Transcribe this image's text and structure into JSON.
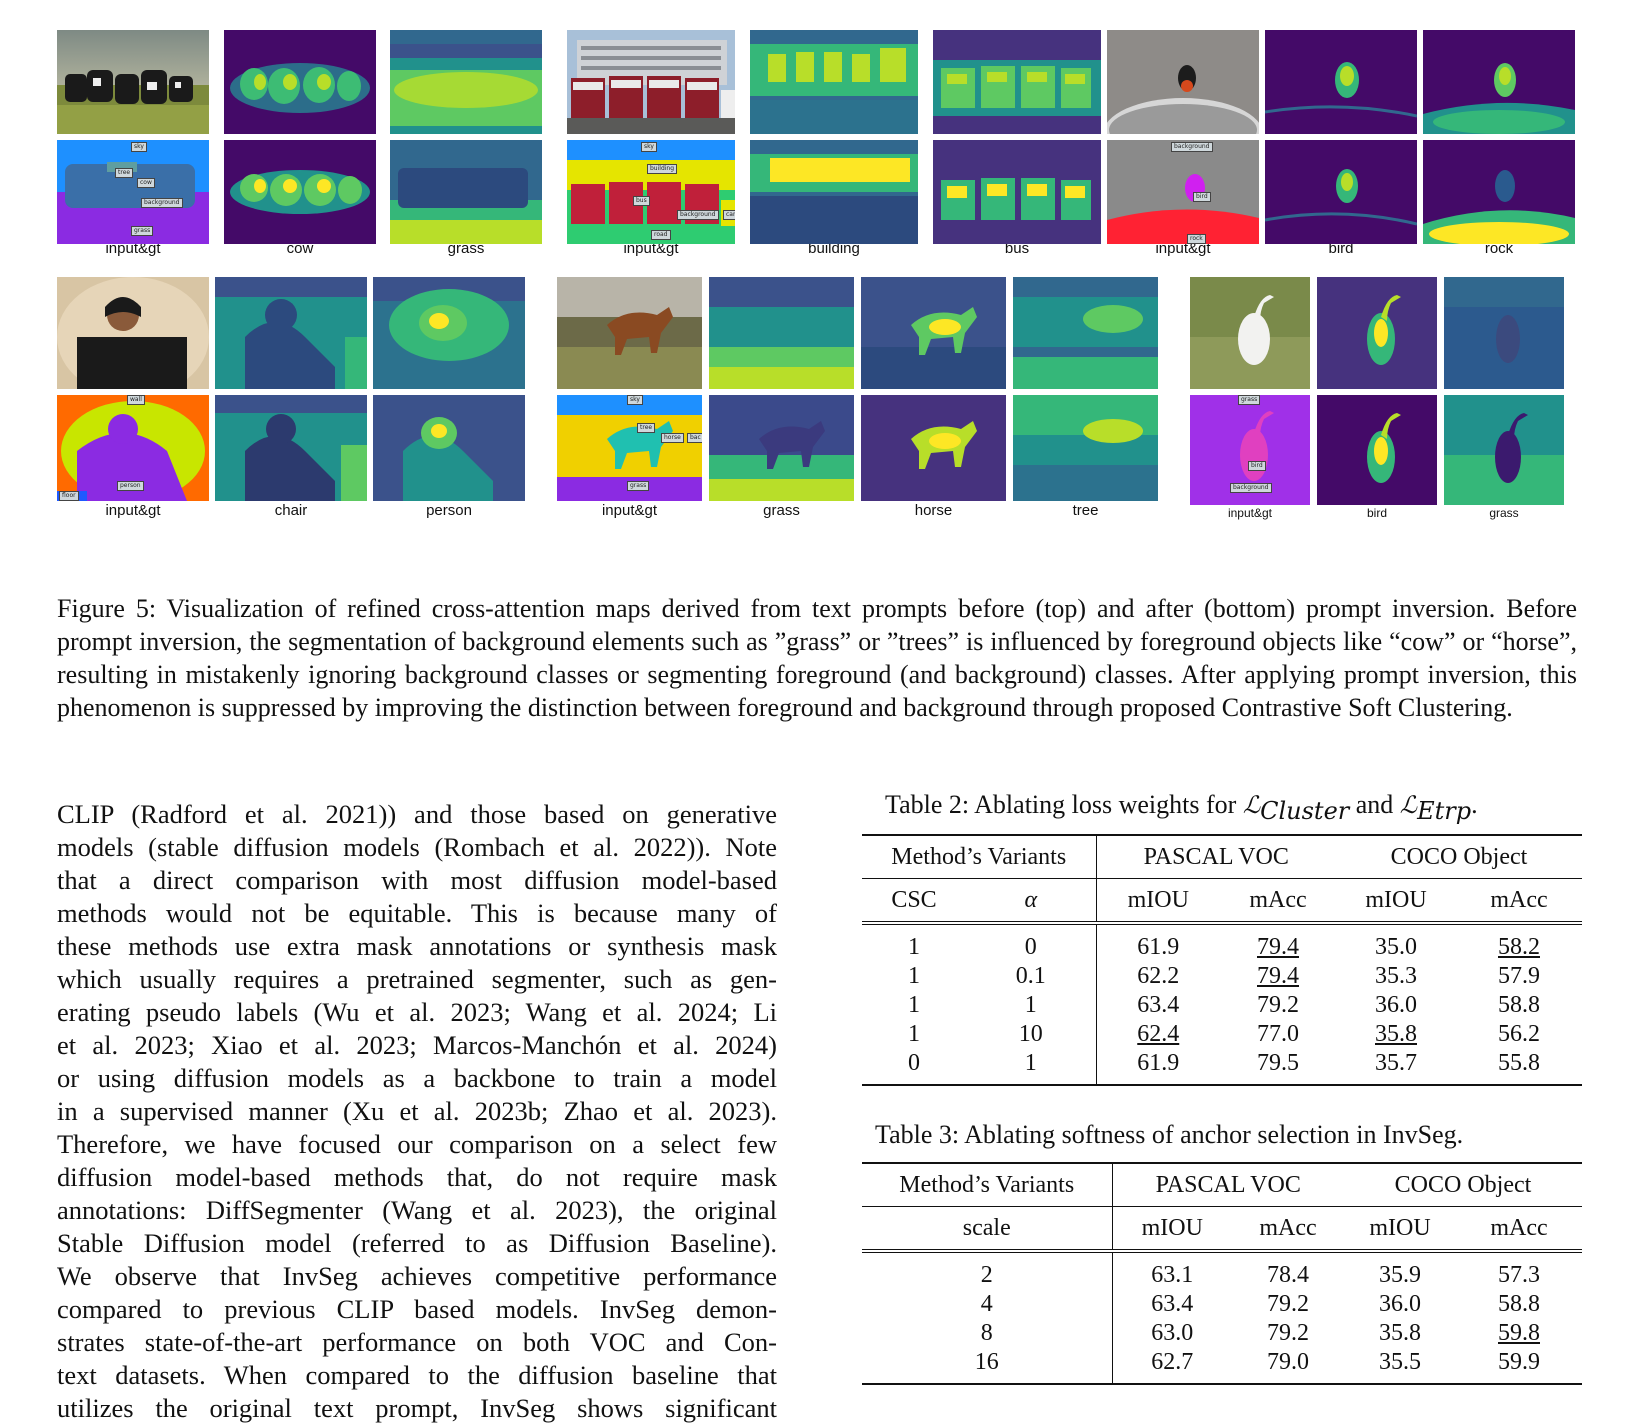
{
  "figure": {
    "groups_top": [
      {
        "labels": [
          "input&gt",
          "cow",
          "grass"
        ],
        "gt_tags": [
          "sky",
          "tree",
          "cow",
          "background",
          "grass"
        ]
      },
      {
        "labels": [
          "input&gt",
          "building",
          "bus"
        ],
        "gt_tags": [
          "sky",
          "building",
          "bus",
          "background",
          "road",
          "car"
        ]
      },
      {
        "labels": [
          "input&gt",
          "bird",
          "rock"
        ],
        "gt_tags": [
          "background",
          "bird",
          "rock"
        ]
      }
    ],
    "groups_bottom": [
      {
        "labels": [
          "input&gt",
          "chair",
          "person"
        ],
        "gt_tags": [
          "wall",
          "person",
          "floor"
        ]
      },
      {
        "labels": [
          "input&gt",
          "grass",
          "horse",
          "tree"
        ],
        "gt_tags": [
          "sky",
          "tree",
          "horse",
          "bac",
          "grass"
        ]
      },
      {
        "labels": [
          "input&gt",
          "bird",
          "grass"
        ],
        "gt_tags": [
          "grass",
          "bird",
          "background"
        ]
      }
    ]
  },
  "caption": "Figure 5: Visualization of refined cross-attention maps derived from text prompts before (top) and after (bottom) prompt inversion. Before prompt inversion, the segmentation of background elements such as ”grass” or ”trees” is influenced by foreground objects like “cow” or “horse”, resulting in mistakenly ignoring background classes or segmenting foreground (and background) classes. After applying prompt inversion, this phenomenon is suppressed by improving the distinction between foreground and background through proposed Contrastive Soft Clustering.",
  "body_lines": [
    "CLIP (Radford et al. 2021)) and those based on generative",
    "models (stable diffusion models (Rombach et al. 2022)). Note",
    "that a direct comparison with most diffusion model-based",
    "methods would not be equitable. This is because many of",
    "these methods use extra mask annotations or synthesis mask",
    "which usually requires a pretrained segmenter, such as gen-",
    "erating pseudo labels (Wu et al. 2023; Wang et al. 2024; Li",
    "et al. 2023; Xiao et al. 2023; Marcos-Manchón et al. 2024)",
    "or using diffusion models as a backbone to train a model",
    "in a supervised manner (Xu et al. 2023b; Zhao et al. 2023).",
    "Therefore, we have focused our comparison on a select few",
    "diffusion model-based methods that, do not require mask",
    "annotations: DiffSegmenter (Wang et al. 2023), the original",
    "Stable Diffusion model (referred to as Diffusion Baseline).",
    "We observe that InvSeg achieves competitive performance",
    "compared to previous CLIP based models. InvSeg demon-",
    "strates state-of-the-art performance on both VOC and Con-",
    "text datasets. When compared to the diffusion baseline that",
    "utilizes the original text prompt, InvSeg shows significant"
  ],
  "table2": {
    "caption_prefix": "Table 2: Ablating loss weights for ",
    "caption_sym1": "ℒ",
    "caption_sub1": "Cluster",
    "caption_mid": " and ",
    "caption_sym2": "ℒ",
    "caption_sub2": "Etrp",
    "caption_suffix": ".",
    "group_headers": [
      "Method’s Variants",
      "PASCAL VOC",
      "COCO Object"
    ],
    "sub_headers": [
      "CSC",
      "α",
      "mIOU",
      "mAcc",
      "mIOU",
      "mAcc"
    ],
    "rows": [
      {
        "cells": [
          "1",
          "0",
          "61.9",
          "79.4",
          "35.0",
          "58.2"
        ],
        "bold": [
          false,
          false,
          false,
          false,
          false,
          false
        ],
        "underline": [
          false,
          false,
          false,
          true,
          false,
          true
        ]
      },
      {
        "cells": [
          "1",
          "0.1",
          "62.2",
          "79.4",
          "35.3",
          "57.9"
        ],
        "bold": [
          false,
          false,
          false,
          false,
          false,
          false
        ],
        "underline": [
          false,
          false,
          false,
          true,
          false,
          false
        ]
      },
      {
        "cells": [
          "1",
          "1",
          "63.4",
          "79.2",
          "36.0",
          "58.8"
        ],
        "bold": [
          true,
          true,
          true,
          false,
          true,
          true
        ],
        "underline": [
          false,
          false,
          false,
          false,
          false,
          false
        ]
      },
      {
        "cells": [
          "1",
          "10",
          "62.4",
          "77.0",
          "35.8",
          "56.2"
        ],
        "bold": [
          false,
          false,
          false,
          false,
          false,
          false
        ],
        "underline": [
          false,
          false,
          true,
          false,
          true,
          false
        ]
      },
      {
        "cells": [
          "0",
          "1",
          "61.9",
          "79.5",
          "35.7",
          "55.8"
        ],
        "bold": [
          false,
          false,
          false,
          true,
          false,
          false
        ],
        "underline": [
          false,
          false,
          false,
          false,
          false,
          false
        ]
      }
    ]
  },
  "table3": {
    "caption": "Table 3: Ablating softness of anchor selection in InvSeg.",
    "group_headers": [
      "Method’s Variants",
      "PASCAL VOC",
      "COCO Object"
    ],
    "sub_headers": [
      "scale",
      "mIOU",
      "mAcc",
      "mIOU",
      "mAcc"
    ],
    "rows": [
      {
        "cells": [
          "2",
          "63.1",
          "78.4",
          "35.9",
          "57.3"
        ],
        "bold": [
          false,
          false,
          false,
          false,
          false
        ],
        "underline": [
          false,
          false,
          false,
          false,
          false
        ]
      },
      {
        "cells": [
          "4",
          "63.4",
          "79.2",
          "36.0",
          "58.8"
        ],
        "bold": [
          true,
          true,
          true,
          true,
          false
        ],
        "underline": [
          false,
          false,
          false,
          false,
          false
        ]
      },
      {
        "cells": [
          "8",
          "63.0",
          "79.2",
          "35.8",
          "59.8"
        ],
        "bold": [
          false,
          false,
          true,
          false,
          false
        ],
        "underline": [
          false,
          false,
          false,
          false,
          true
        ]
      },
      {
        "cells": [
          "16",
          "62.7",
          "79.0",
          "35.5",
          "59.9"
        ],
        "bold": [
          false,
          false,
          false,
          false,
          true
        ],
        "underline": [
          false,
          false,
          false,
          false,
          false
        ]
      }
    ]
  }
}
